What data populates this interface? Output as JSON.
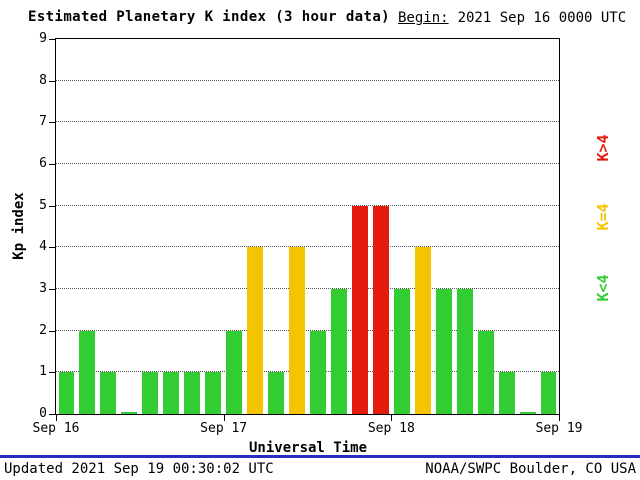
{
  "title": "Estimated Planetary K index (3 hour data)",
  "begin": {
    "label": "Begin:",
    "value": "2021 Sep 16 0000 UTC"
  },
  "footer": {
    "updated": "Updated 2021 Sep 19 00:30:02 UTC",
    "credit": "NOAA/SWPC Boulder, CO USA"
  },
  "colors": {
    "green": "#32CD32",
    "yellow": "#F5C400",
    "red": "#E41A0C",
    "separator_blue": "#2B2BC0"
  },
  "legend": [
    {
      "label": "K>4",
      "color_key": "red"
    },
    {
      "label": "K=4",
      "color_key": "yellow"
    },
    {
      "label": "K<4",
      "color_key": "green"
    }
  ],
  "chart_data": {
    "type": "bar",
    "title": "Estimated Planetary K index (3 hour data)",
    "xlabel": "Universal Time",
    "ylabel": "Kp index",
    "ylim": [
      0,
      9
    ],
    "yticks": [
      0,
      1,
      2,
      3,
      4,
      5,
      6,
      7,
      8,
      9
    ],
    "x_tick_labels": [
      "Sep 16",
      "Sep 17",
      "Sep 18",
      "Sep 19"
    ],
    "bin_hours": 3,
    "values": [
      1,
      2,
      1,
      0,
      1,
      1,
      1,
      1,
      2,
      4,
      1,
      4,
      2,
      3,
      5,
      5,
      3,
      4,
      3,
      3,
      2,
      1,
      0,
      1
    ],
    "color_rule": {
      "lt4": "green",
      "eq4": "yellow",
      "gt4": "red"
    },
    "grid": "horizontal-dotted",
    "legend_position": "right-rotated"
  }
}
